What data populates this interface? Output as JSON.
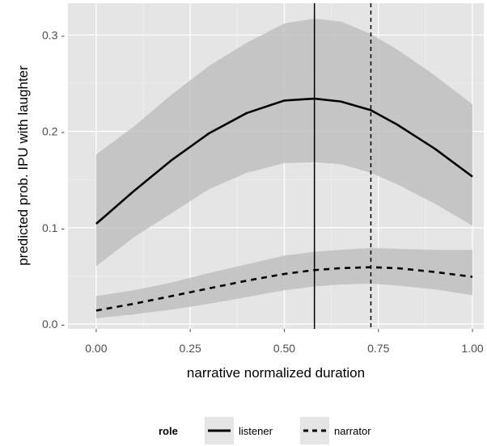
{
  "chart_data": {
    "type": "line",
    "xlabel": "narrative normalized duration",
    "ylabel": "predicted prob. IPU with laughter",
    "xlim": [
      -0.075,
      1.03
    ],
    "ylim": [
      -0.005,
      0.333
    ],
    "x_ticks": [
      0.0,
      0.25,
      0.5,
      0.75,
      1.0
    ],
    "x_tick_labels": [
      "0.00",
      "0.25",
      "0.50",
      "0.75",
      "1.00"
    ],
    "y_ticks": [
      0.0,
      0.1,
      0.2,
      0.3
    ],
    "y_tick_labels": [
      "0.0 -",
      "0.1 -",
      "0.2 -",
      "0.3 -"
    ],
    "grid": true,
    "legend_position": "bottom",
    "legend_title": "role",
    "series": [
      {
        "name": "listener",
        "linetype": "solid",
        "x": [
          0.0,
          0.1,
          0.2,
          0.3,
          0.4,
          0.5,
          0.58,
          0.65,
          0.73,
          0.8,
          0.9,
          1.0
        ],
        "y": [
          0.104,
          0.138,
          0.17,
          0.198,
          0.219,
          0.232,
          0.234,
          0.231,
          0.222,
          0.207,
          0.182,
          0.153
        ],
        "lower": [
          0.06,
          0.09,
          0.115,
          0.14,
          0.157,
          0.167,
          0.168,
          0.166,
          0.157,
          0.145,
          0.125,
          0.102
        ],
        "upper": [
          0.176,
          0.205,
          0.238,
          0.268,
          0.292,
          0.312,
          0.317,
          0.314,
          0.301,
          0.285,
          0.258,
          0.228
        ]
      },
      {
        "name": "narrator",
        "linetype": "dashed",
        "x": [
          0.0,
          0.1,
          0.2,
          0.3,
          0.4,
          0.5,
          0.58,
          0.65,
          0.73,
          0.8,
          0.9,
          1.0
        ],
        "y": [
          0.014,
          0.021,
          0.029,
          0.037,
          0.045,
          0.052,
          0.056,
          0.058,
          0.059,
          0.058,
          0.054,
          0.049
        ],
        "lower": [
          0.006,
          0.01,
          0.015,
          0.021,
          0.028,
          0.035,
          0.039,
          0.041,
          0.042,
          0.04,
          0.036,
          0.03
        ],
        "upper": [
          0.029,
          0.035,
          0.043,
          0.053,
          0.062,
          0.071,
          0.075,
          0.077,
          0.079,
          0.078,
          0.077,
          0.077
        ]
      }
    ],
    "vlines": [
      {
        "x": 0.58,
        "linetype": "solid"
      },
      {
        "x": 0.73,
        "linetype": "dashed"
      }
    ],
    "colors": {
      "panel_background": "#e5e5e5",
      "grid_major": "#ffffff",
      "ribbon": "#bdbdbd",
      "line": "#000000"
    }
  }
}
